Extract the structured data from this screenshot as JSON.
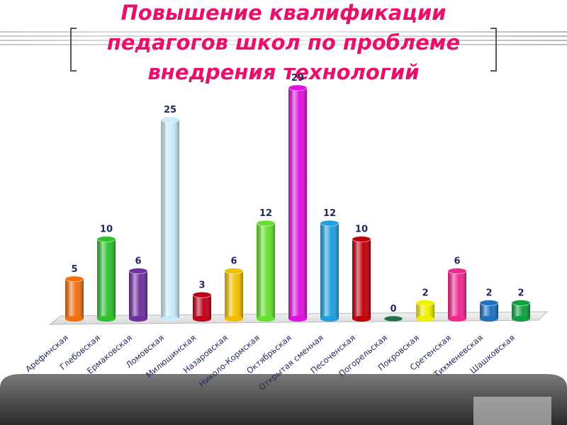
{
  "chart_data": {
    "type": "bar",
    "title_lines": [
      "Повышение квалификации",
      "педагогов школ по проблеме",
      "внедрения технологий"
    ],
    "categories": [
      "Арефинская",
      "Глебовская",
      "Ермаковская",
      "Ломовская",
      "Милюшинская",
      "Назаровская",
      "Николо-Кормская",
      "Октябрьская",
      "Открытая сменная",
      "Песоченская",
      "Погорельская",
      "Покровская",
      "Сретенская",
      "Тихменевская",
      "Шашковская"
    ],
    "values": [
      5,
      10,
      6,
      25,
      3,
      6,
      12,
      29,
      12,
      10,
      0,
      2,
      6,
      2,
      2
    ],
    "colors": [
      "#f07010",
      "#30c030",
      "#7030a0",
      "#c8ecfa",
      "#c00018",
      "#f0c000",
      "#66e030",
      "#e010e0",
      "#20a0e0",
      "#c00008",
      "#207048",
      "#f0f000",
      "#f02890",
      "#2070c0",
      "#10a040"
    ]
  }
}
